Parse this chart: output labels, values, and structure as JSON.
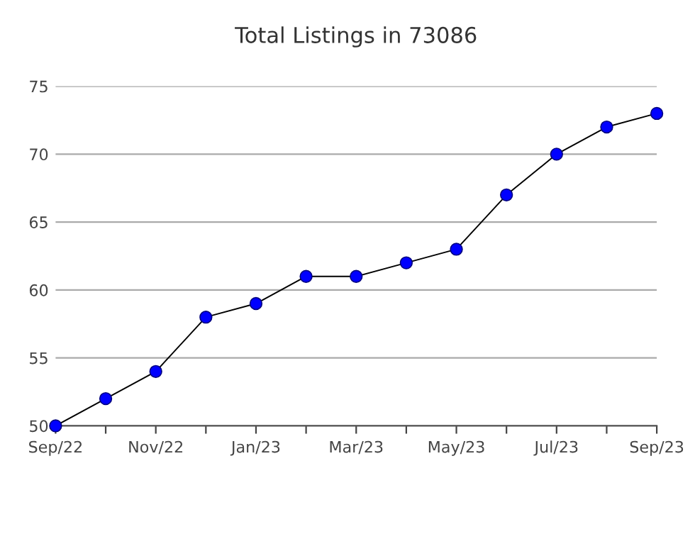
{
  "chart_data": {
    "type": "line",
    "title": "Total Listings in 73086",
    "categories": [
      "Sep/22",
      null,
      "Nov/22",
      null,
      "Jan/23",
      null,
      "Mar/23",
      null,
      "May/23",
      null,
      "Jul/23",
      null,
      "Sep/23"
    ],
    "series": [
      {
        "color": "#0000ff",
        "values": [
          50,
          52,
          54,
          58,
          59,
          61,
          61,
          62,
          63,
          67,
          70,
          72,
          73
        ]
      }
    ],
    "ylim": [
      50,
      75
    ],
    "yticks": [
      50,
      55,
      60,
      65,
      70,
      75
    ],
    "grid": "y",
    "marker": "circle",
    "line_style": "solid",
    "legend": false
  }
}
